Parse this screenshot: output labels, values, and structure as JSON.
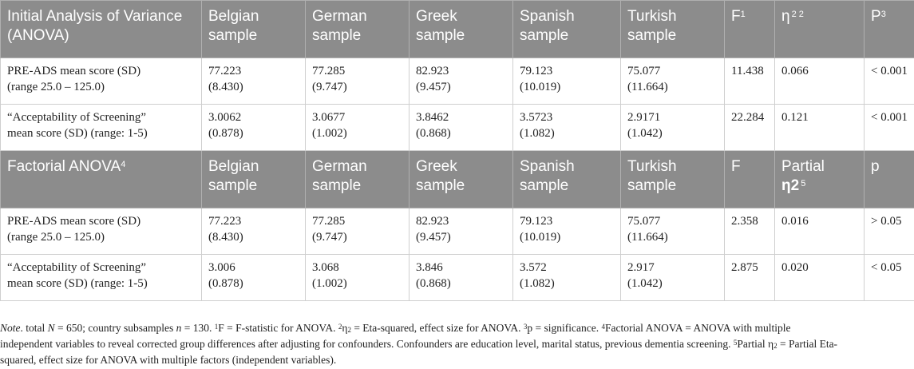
{
  "header1": {
    "title_line1": "Initial Analysis of Variance",
    "title_line2": "(ANOVA)",
    "cols": [
      {
        "line1": "Belgian",
        "line2": "sample"
      },
      {
        "line1": "German",
        "line2": "sample"
      },
      {
        "line1": "Greek",
        "line2": "sample"
      },
      {
        "line1": "Spanish",
        "line2": "sample"
      },
      {
        "line1": "Turkish",
        "line2": "sample"
      }
    ],
    "f": "F",
    "f_sup": "1",
    "eta": "η",
    "eta_sup": "2 2",
    "p": "P",
    "p_sup": "3"
  },
  "block1": [
    {
      "label_line1": "PRE-ADS mean score (SD)",
      "label_line2": "(range 25.0 – 125.0)",
      "values": [
        {
          "mean": "77.223",
          "sd": "(8.430)"
        },
        {
          "mean": "77.285",
          "sd": "(9.747)"
        },
        {
          "mean": "82.923",
          "sd": "(9.457)"
        },
        {
          "mean": "79.123",
          "sd": "(10.019)"
        },
        {
          "mean": "75.077",
          "sd": "(11.664)"
        }
      ],
      "f": "11.438",
      "eta": "0.066",
      "p": "< 0.001"
    },
    {
      "label_line1": "“Acceptability of Screening”",
      "label_line2": "mean score (SD) (range: 1-5)",
      "values": [
        {
          "mean": "3.0062",
          "sd": "(0.878)"
        },
        {
          "mean": "3.0677",
          "sd": "(1.002)"
        },
        {
          "mean": "3.8462",
          "sd": "(0.868)"
        },
        {
          "mean": "3.5723",
          "sd": "(1.082)"
        },
        {
          "mean": "2.9171",
          "sd": "(1.042)"
        }
      ],
      "f": "22.284",
      "eta": "0.121",
      "p": "< 0.001"
    }
  ],
  "header2": {
    "title": "Factorial ANOVA",
    "title_sup": "4",
    "cols": [
      {
        "line1": "Belgian",
        "line2": "sample"
      },
      {
        "line1": "German",
        "line2": "sample"
      },
      {
        "line1": "Greek",
        "line2": "sample"
      },
      {
        "line1": "Spanish",
        "line2": "sample"
      },
      {
        "line1": "Turkish",
        "line2": "sample"
      }
    ],
    "f": "F",
    "partial_line1": "Partial",
    "partial_eta": "η2",
    "partial_sup": "5",
    "p": "p"
  },
  "block2": [
    {
      "label_line1": "PRE-ADS mean score (SD)",
      "label_line2": "(range 25.0 – 125.0)",
      "values": [
        {
          "mean": "77.223",
          "sd": "(8.430)"
        },
        {
          "mean": "77.285",
          "sd": "(9.747)"
        },
        {
          "mean": "82.923",
          "sd": "(9.457)"
        },
        {
          "mean": "79.123",
          "sd": "(10.019)"
        },
        {
          "mean": "75.077",
          "sd": "(11.664)"
        }
      ],
      "f": "2.358",
      "eta": "0.016",
      "p": "> 0.05"
    },
    {
      "label_line1": "“Acceptability of Screening”",
      "label_line2": "mean score (SD) (range: 1-5)",
      "values": [
        {
          "mean": "3.006",
          "sd": "(0.878)"
        },
        {
          "mean": "3.068",
          "sd": "(1.002)"
        },
        {
          "mean": "3.846",
          "sd": "(0.868)"
        },
        {
          "mean": "3.572",
          "sd": "(1.082)"
        },
        {
          "mean": "2.917",
          "sd": "(1.042)"
        }
      ],
      "f": "2.875",
      "eta": "0.020",
      "p": "< 0.05"
    }
  ],
  "note": {
    "label": "Note",
    "t1": ". total ",
    "N": "N",
    "t2": " = 650; country subsamples ",
    "n": "n",
    "t3": " = 130. ",
    "s1": "1",
    "t4": "F = F-statistic for ANOVA. ",
    "s2": "2",
    "t5": "η",
    "sub2a": "2",
    "t6": " = Eta-squared, effect size for ANOVA. ",
    "s3": "3",
    "t7": "p = significance. ",
    "s4": "4",
    "t8": "Factorial ANOVA = ANOVA with multiple",
    "line2": "independent variables to reveal corrected group differences after adjusting for confounders. Confounders are education level, marital status, previous dementia screening. ",
    "s5": "5",
    "t9": "Partial η",
    "sub2b": "2",
    "t10": " = Partial Eta-",
    "line3": "squared, effect size for ANOVA with multiple factors (independent variables)."
  }
}
